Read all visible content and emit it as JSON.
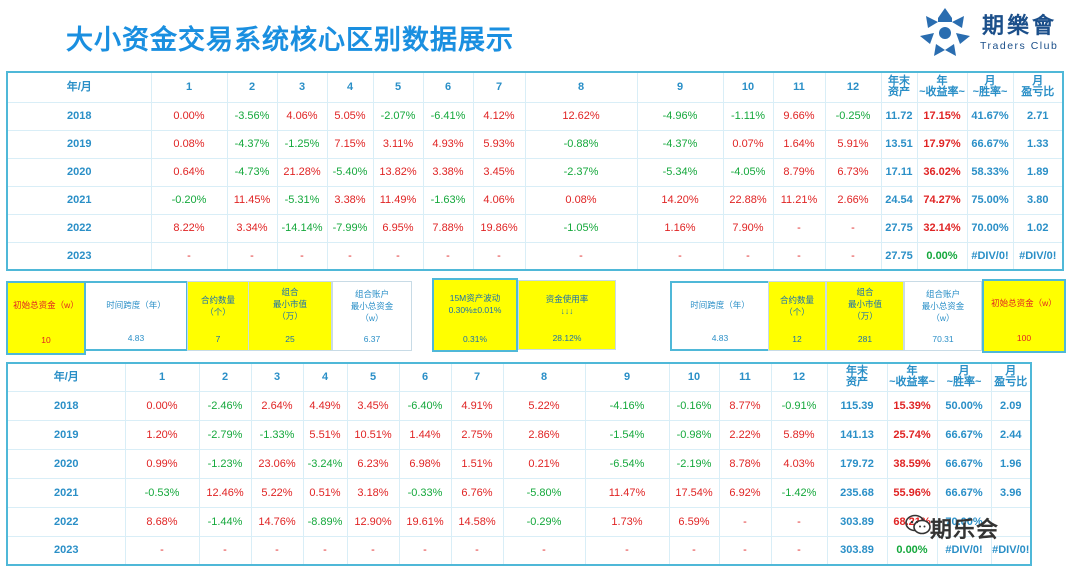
{
  "title": "大小资金交易系统核心区别数据展示",
  "logo": {
    "cn": "期樂會",
    "en": "Traders Club"
  },
  "watermark": "期乐会",
  "table_headers": [
    "年/月",
    "1",
    "2",
    "3",
    "4",
    "5",
    "6",
    "7",
    "8",
    "9",
    "10",
    "11",
    "12",
    "年末\n资产",
    "年\n~收益率~",
    "月\n~胜率~",
    "月\n盈亏比"
  ],
  "table1": {
    "rows": [
      {
        "year": "2018",
        "m": [
          "0.00%",
          "-3.56%",
          "4.06%",
          "5.05%",
          "-2.07%",
          "-6.41%",
          "4.12%",
          "12.62%",
          "-4.96%",
          "-1.11%",
          "9.66%",
          "-0.25%"
        ],
        "asset": "11.72",
        "ann": "17.15%",
        "win": "41.67%",
        "pl": "2.71"
      },
      {
        "year": "2019",
        "m": [
          "0.08%",
          "-4.37%",
          "-1.25%",
          "7.15%",
          "3.11%",
          "4.93%",
          "5.93%",
          "-0.88%",
          "-4.37%",
          "0.07%",
          "1.64%",
          "5.91%"
        ],
        "asset": "13.51",
        "ann": "17.97%",
        "win": "66.67%",
        "pl": "1.33"
      },
      {
        "year": "2020",
        "m": [
          "0.64%",
          "-4.73%",
          "21.28%",
          "-5.40%",
          "13.82%",
          "3.38%",
          "3.45%",
          "-2.37%",
          "-5.34%",
          "-4.05%",
          "8.79%",
          "6.73%"
        ],
        "asset": "17.11",
        "ann": "36.02%",
        "win": "58.33%",
        "pl": "1.89"
      },
      {
        "year": "2021",
        "m": [
          "-0.20%",
          "11.45%",
          "-5.31%",
          "3.38%",
          "11.49%",
          "-1.63%",
          "4.06%",
          "0.08%",
          "14.20%",
          "22.88%",
          "11.21%",
          "2.66%"
        ],
        "asset": "24.54",
        "ann": "74.27%",
        "win": "75.00%",
        "pl": "3.80"
      },
      {
        "year": "2022",
        "m": [
          "8.22%",
          "3.34%",
          "-14.14%",
          "-7.99%",
          "6.95%",
          "7.88%",
          "19.86%",
          "-1.05%",
          "1.16%",
          "7.90%",
          "-",
          "-"
        ],
        "asset": "27.75",
        "ann": "32.14%",
        "win": "70.00%",
        "pl": "1.02"
      },
      {
        "year": "2023",
        "m": [
          "-",
          "-",
          "-",
          "-",
          "-",
          "-",
          "-",
          "-",
          "-",
          "-",
          "-",
          "-"
        ],
        "asset": "27.75",
        "ann": "0.00%",
        "win": "#DIV/0!",
        "pl": "#DIV/0!"
      }
    ]
  },
  "table2": {
    "rows": [
      {
        "year": "2018",
        "m": [
          "0.00%",
          "-2.46%",
          "2.64%",
          "4.49%",
          "3.45%",
          "-6.40%",
          "4.91%",
          "5.22%",
          "-4.16%",
          "-0.16%",
          "8.77%",
          "-0.91%"
        ],
        "asset": "115.39",
        "ann": "15.39%",
        "win": "50.00%",
        "pl": "2.09"
      },
      {
        "year": "2019",
        "m": [
          "1.20%",
          "-2.79%",
          "-1.33%",
          "5.51%",
          "10.51%",
          "1.44%",
          "2.75%",
          "2.86%",
          "-1.54%",
          "-0.98%",
          "2.22%",
          "5.89%"
        ],
        "asset": "141.13",
        "ann": "25.74%",
        "win": "66.67%",
        "pl": "2.44"
      },
      {
        "year": "2020",
        "m": [
          "0.99%",
          "-1.23%",
          "23.06%",
          "-3.24%",
          "6.23%",
          "6.98%",
          "1.51%",
          "0.21%",
          "-6.54%",
          "-2.19%",
          "8.78%",
          "4.03%"
        ],
        "asset": "179.72",
        "ann": "38.59%",
        "win": "66.67%",
        "pl": "1.96"
      },
      {
        "year": "2021",
        "m": [
          "-0.53%",
          "12.46%",
          "5.22%",
          "0.51%",
          "3.18%",
          "-0.33%",
          "6.76%",
          "-5.80%",
          "11.47%",
          "17.54%",
          "6.92%",
          "-1.42%"
        ],
        "asset": "235.68",
        "ann": "55.96%",
        "win": "66.67%",
        "pl": "3.96"
      },
      {
        "year": "2022",
        "m": [
          "8.68%",
          "-1.44%",
          "14.76%",
          "-8.89%",
          "12.90%",
          "19.61%",
          "14.58%",
          "-0.29%",
          "1.73%",
          "6.59%",
          "-",
          "-"
        ],
        "asset": "303.89",
        "ann": "68.21%",
        "win": "70.00%",
        "pl": ""
      },
      {
        "year": "2023",
        "m": [
          "-",
          "-",
          "-",
          "-",
          "-",
          "-",
          "-",
          "-",
          "-",
          "-",
          "-",
          "-"
        ],
        "asset": "303.89",
        "ann": "0.00%",
        "win": "#DIV/0!",
        "pl": "#DIV/0!"
      }
    ]
  },
  "params_small": {
    "initial": {
      "label": "初始总资金（w）",
      "value": "10"
    },
    "span": {
      "label": "时间跨度（年）",
      "value": "4.83"
    },
    "contracts": {
      "label": "合约数量\n（个）",
      "value": "7"
    },
    "min_mv": {
      "label": "组合\n最小市值\n（万）",
      "value": "25"
    },
    "min_total": {
      "label": "组合账户\n最小总资金\n（w）",
      "value": "6.37"
    }
  },
  "params_mid": {
    "volatility": {
      "label": "15M资产波动\n0.30%±0.01%",
      "value": "0.31%"
    },
    "usage": {
      "label": "资金使用率\n↓↓↓",
      "value": "28.12%"
    }
  },
  "params_large": {
    "span": {
      "label": "时间跨度（年）",
      "value": "4.83"
    },
    "contracts": {
      "label": "合约数量\n（个）",
      "value": "12"
    },
    "min_mv": {
      "label": "组合\n最小市值\n（万）",
      "value": "281"
    },
    "min_total": {
      "label": "组合账户\n最小总资金\n（w）",
      "value": "70.31"
    },
    "initial": {
      "label": "初始总资金（w）",
      "value": "100"
    }
  }
}
